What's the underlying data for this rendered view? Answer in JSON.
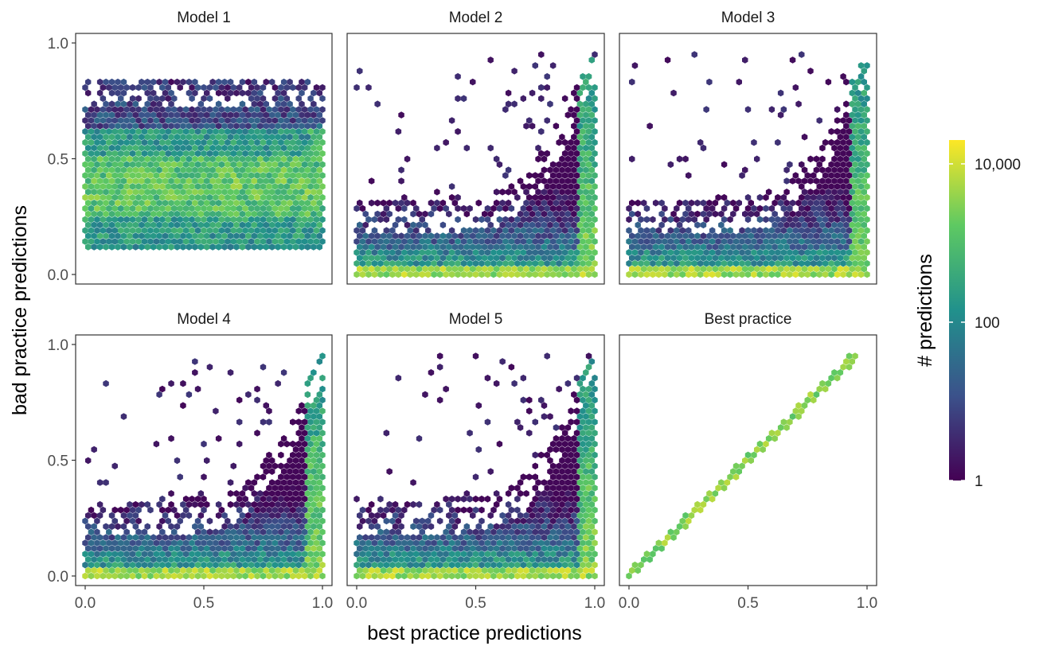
{
  "chart_data": {
    "type": "heatmap",
    "subtype": "hexbin-faceted",
    "xlabel": "best practice predictions",
    "ylabel": "bad practice predictions",
    "x_range": [
      0,
      1
    ],
    "y_range": [
      0,
      1
    ],
    "x_ticks": [
      "0.0",
      "0.5",
      "1.0"
    ],
    "y_ticks": [
      "0.0",
      "0.5",
      "1.0"
    ],
    "facet_layout": [
      2,
      3
    ],
    "panels": [
      {
        "title": "Model 1",
        "pattern": "broad",
        "x_extent": [
          0,
          1
        ],
        "y_extent": [
          0.1,
          0.85
        ],
        "dense_regions": [
          {
            "x": [
              0.0,
              1.0
            ],
            "y": [
              0.25,
              0.5
            ]
          },
          {
            "x": [
              0.95,
              1.0
            ],
            "y": [
              0.4,
              0.65
            ]
          }
        ]
      },
      {
        "title": "Model 2",
        "pattern": "floor-curve",
        "x_extent": [
          0,
          1
        ],
        "y_extent": [
          0,
          0.93
        ],
        "dense_regions": [
          {
            "x": [
              0.0,
              1.0
            ],
            "y": [
              0.0,
              0.1
            ]
          },
          {
            "x": [
              0.95,
              1.0
            ],
            "y": [
              0.0,
              0.4
            ]
          }
        ]
      },
      {
        "title": "Model 3",
        "pattern": "floor-curve",
        "x_extent": [
          0,
          1
        ],
        "y_extent": [
          0,
          0.93
        ],
        "dense_regions": [
          {
            "x": [
              0.0,
              1.0
            ],
            "y": [
              0.0,
              0.1
            ]
          },
          {
            "x": [
              0.95,
              1.0
            ],
            "y": [
              0.0,
              0.4
            ]
          }
        ]
      },
      {
        "title": "Model 4",
        "pattern": "floor-curve",
        "x_extent": [
          0,
          1
        ],
        "y_extent": [
          0,
          0.98
        ],
        "dense_regions": [
          {
            "x": [
              0.0,
              1.0
            ],
            "y": [
              0.0,
              0.1
            ]
          },
          {
            "x": [
              0.95,
              1.0
            ],
            "y": [
              0.0,
              0.6
            ]
          }
        ]
      },
      {
        "title": "Model 5",
        "pattern": "floor-curve",
        "x_extent": [
          0,
          1
        ],
        "y_extent": [
          0,
          0.98
        ],
        "dense_regions": [
          {
            "x": [
              0.0,
              1.0
            ],
            "y": [
              0.0,
              0.1
            ]
          },
          {
            "x": [
              0.95,
              1.0
            ],
            "y": [
              0.0,
              0.5
            ]
          }
        ]
      },
      {
        "title": "Best practice",
        "pattern": "diagonal",
        "x_extent": [
          0,
          1
        ],
        "y_extent": [
          0,
          1
        ],
        "dense_regions": [
          {
            "x": [
              0.0,
              1.0
            ],
            "y": [
              0.0,
              1.0
            ]
          }
        ]
      }
    ],
    "legend": {
      "title": "# predictions",
      "scale": "log10",
      "range": [
        1,
        20000
      ],
      "breaks": [
        1,
        100,
        10000
      ],
      "labels": [
        "1",
        "100",
        "10,000"
      ],
      "colormap": "viridis",
      "colors": [
        "#440154",
        "#3b528b",
        "#21918c",
        "#5ec962",
        "#fde725"
      ],
      "placement": "right"
    }
  }
}
